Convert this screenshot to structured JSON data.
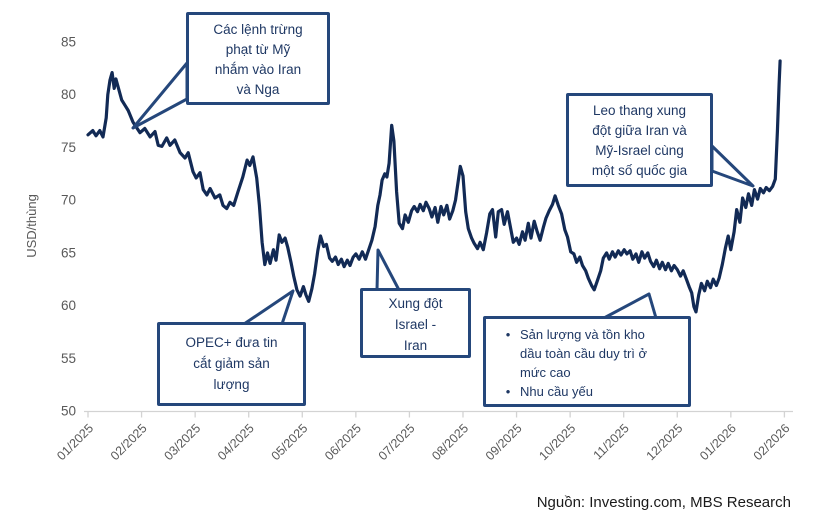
{
  "chart_data": {
    "type": "line",
    "title": "",
    "ylabel": "USD/thùng",
    "x_labels": [
      "01/2025",
      "02/2025",
      "03/2025",
      "04/2025",
      "05/2025",
      "06/2025",
      "07/2025",
      "08/2025",
      "09/2025",
      "10/2025",
      "11/2025",
      "12/2025",
      "01/2026",
      "02/2026"
    ],
    "y_ticks": [
      50,
      55,
      60,
      65,
      70,
      75,
      80,
      85
    ],
    "ylim": [
      50,
      85
    ],
    "grid": false,
    "legend": "none",
    "line_color": "#122A55",
    "axis_color": "#D3D3D3",
    "tick_label_color": "#595959",
    "series": [
      {
        "points": [
          [
            0,
            76.2
          ],
          [
            0.09,
            76.6
          ],
          [
            0.15,
            76.1
          ],
          [
            0.22,
            76.6
          ],
          [
            0.28,
            76
          ],
          [
            0.34,
            77.8
          ],
          [
            0.37,
            80
          ],
          [
            0.41,
            81.4
          ],
          [
            0.45,
            82.1
          ],
          [
            0.49,
            80.6
          ],
          [
            0.52,
            81.5
          ],
          [
            0.58,
            80.4
          ],
          [
            0.63,
            79.5
          ],
          [
            0.69,
            79
          ],
          [
            0.75,
            78.5
          ],
          [
            0.84,
            77.4
          ],
          [
            0.97,
            76.4
          ],
          [
            1.06,
            76.8
          ],
          [
            1.16,
            76
          ],
          [
            1.25,
            76.5
          ],
          [
            1.31,
            75.2
          ],
          [
            1.38,
            75.1
          ],
          [
            1.47,
            75.9
          ],
          [
            1.53,
            75.2
          ],
          [
            1.62,
            75.7
          ],
          [
            1.72,
            74.5
          ],
          [
            1.81,
            74
          ],
          [
            1.87,
            74.5
          ],
          [
            1.96,
            72.7
          ],
          [
            2.02,
            72.1
          ],
          [
            2.09,
            72.6
          ],
          [
            2.15,
            71
          ],
          [
            2.22,
            70.5
          ],
          [
            2.28,
            71.1
          ],
          [
            2.37,
            70.2
          ],
          [
            2.46,
            70.5
          ],
          [
            2.52,
            69.5
          ],
          [
            2.59,
            69.2
          ],
          [
            2.65,
            69.8
          ],
          [
            2.72,
            69.5
          ],
          [
            2.8,
            70.8
          ],
          [
            2.89,
            72.2
          ],
          [
            2.97,
            73.8
          ],
          [
            3.02,
            73.3
          ],
          [
            3.08,
            74.1
          ],
          [
            3.15,
            72.1
          ],
          [
            3.2,
            69.5
          ],
          [
            3.25,
            66
          ],
          [
            3.3,
            63.9
          ],
          [
            3.35,
            65
          ],
          [
            3.4,
            64
          ],
          [
            3.46,
            65.3
          ],
          [
            3.51,
            64.3
          ],
          [
            3.57,
            66.7
          ],
          [
            3.62,
            66
          ],
          [
            3.68,
            66.4
          ],
          [
            3.73,
            65.5
          ],
          [
            3.79,
            64.1
          ],
          [
            3.84,
            62.8
          ],
          [
            3.9,
            61.5
          ],
          [
            3.96,
            60.9
          ],
          [
            4.02,
            61.8
          ],
          [
            4.07,
            61
          ],
          [
            4.12,
            60.4
          ],
          [
            4.18,
            61.6
          ],
          [
            4.23,
            63
          ],
          [
            4.29,
            65.2
          ],
          [
            4.34,
            66.6
          ],
          [
            4.4,
            65.6
          ],
          [
            4.45,
            65.8
          ],
          [
            4.51,
            64.5
          ],
          [
            4.56,
            64.2
          ],
          [
            4.62,
            64.6
          ],
          [
            4.67,
            63.9
          ],
          [
            4.73,
            64.4
          ],
          [
            4.78,
            63.7
          ],
          [
            4.84,
            64.3
          ],
          [
            4.89,
            63.8
          ],
          [
            4.95,
            64.6
          ],
          [
            5,
            64.9
          ],
          [
            5.06,
            64.4
          ],
          [
            5.12,
            65.1
          ],
          [
            5.18,
            64.4
          ],
          [
            5.24,
            65.3
          ],
          [
            5.3,
            66.2
          ],
          [
            5.36,
            67.5
          ],
          [
            5.41,
            69.5
          ],
          [
            5.45,
            70.5
          ],
          [
            5.49,
            71.9
          ],
          [
            5.54,
            72.5
          ],
          [
            5.58,
            72.2
          ],
          [
            5.62,
            73.5
          ],
          [
            5.67,
            77.1
          ],
          [
            5.71,
            75.6
          ],
          [
            5.76,
            70.8
          ],
          [
            5.81,
            67.8
          ],
          [
            5.87,
            67.3
          ],
          [
            5.92,
            68.6
          ],
          [
            5.98,
            67.9
          ],
          [
            6.04,
            69
          ],
          [
            6.09,
            69.4
          ],
          [
            6.15,
            68.9
          ],
          [
            6.2,
            69.6
          ],
          [
            6.26,
            69
          ],
          [
            6.31,
            69.8
          ],
          [
            6.37,
            69.2
          ],
          [
            6.42,
            68.4
          ],
          [
            6.48,
            69.3
          ],
          [
            6.53,
            67.9
          ],
          [
            6.59,
            69.4
          ],
          [
            6.64,
            68.6
          ],
          [
            6.7,
            69.5
          ],
          [
            6.75,
            68.2
          ],
          [
            6.81,
            69
          ],
          [
            6.86,
            70
          ],
          [
            6.91,
            71.8
          ],
          [
            6.95,
            73.2
          ],
          [
            7,
            72.3
          ],
          [
            7.05,
            68.9
          ],
          [
            7.1,
            67.3
          ],
          [
            7.16,
            66.4
          ],
          [
            7.21,
            65.9
          ],
          [
            7.27,
            65.4
          ],
          [
            7.32,
            66
          ],
          [
            7.38,
            65.3
          ],
          [
            7.44,
            66.9
          ],
          [
            7.5,
            68.7
          ],
          [
            7.55,
            69.1
          ],
          [
            7.61,
            66.5
          ],
          [
            7.66,
            68.9
          ],
          [
            7.72,
            69.1
          ],
          [
            7.77,
            67.7
          ],
          [
            7.83,
            68.9
          ],
          [
            7.88,
            67.6
          ],
          [
            7.94,
            66
          ],
          [
            8,
            66.4
          ],
          [
            8.05,
            65.8
          ],
          [
            8.11,
            67
          ],
          [
            8.16,
            66.2
          ],
          [
            8.22,
            67.8
          ],
          [
            8.27,
            66.4
          ],
          [
            8.33,
            68
          ],
          [
            8.38,
            67.1
          ],
          [
            8.44,
            66.2
          ],
          [
            8.5,
            67.4
          ],
          [
            8.55,
            68.3
          ],
          [
            8.61,
            69
          ],
          [
            8.67,
            69.6
          ],
          [
            8.72,
            70.4
          ],
          [
            8.78,
            69.5
          ],
          [
            8.84,
            68.7
          ],
          [
            8.9,
            67.2
          ],
          [
            8.95,
            66.5
          ],
          [
            9.01,
            65.1
          ],
          [
            9.07,
            64.9
          ],
          [
            9.12,
            64.1
          ],
          [
            9.18,
            64.6
          ],
          [
            9.23,
            63.8
          ],
          [
            9.29,
            63.3
          ],
          [
            9.34,
            62.6
          ],
          [
            9.4,
            61.9
          ],
          [
            9.45,
            61.5
          ],
          [
            9.51,
            62.4
          ],
          [
            9.57,
            63.3
          ],
          [
            9.62,
            64.5
          ],
          [
            9.68,
            65
          ],
          [
            9.73,
            64.4
          ],
          [
            9.79,
            65.1
          ],
          [
            9.84,
            64.6
          ],
          [
            9.9,
            65.2
          ],
          [
            9.95,
            64.8
          ],
          [
            10.01,
            65.3
          ],
          [
            10.06,
            64.9
          ],
          [
            10.12,
            65.2
          ],
          [
            10.17,
            64.4
          ],
          [
            10.23,
            64.9
          ],
          [
            10.28,
            64.1
          ],
          [
            10.34,
            65.1
          ],
          [
            10.39,
            64.5
          ],
          [
            10.45,
            65
          ],
          [
            10.5,
            64.2
          ],
          [
            10.56,
            63.7
          ],
          [
            10.61,
            64.3
          ],
          [
            10.67,
            63.5
          ],
          [
            10.72,
            64.1
          ],
          [
            10.78,
            63.4
          ],
          [
            10.83,
            64
          ],
          [
            10.89,
            63.3
          ],
          [
            10.94,
            63.8
          ],
          [
            11,
            63.4
          ],
          [
            11.06,
            62.8
          ],
          [
            11.11,
            63.3
          ],
          [
            11.17,
            62.5
          ],
          [
            11.22,
            61.8
          ],
          [
            11.27,
            61.2
          ],
          [
            11.31,
            59.9
          ],
          [
            11.35,
            59.4
          ],
          [
            11.4,
            61
          ],
          [
            11.45,
            62.1
          ],
          [
            11.51,
            61.4
          ],
          [
            11.56,
            62.3
          ],
          [
            11.62,
            61.7
          ],
          [
            11.67,
            62.5
          ],
          [
            11.73,
            61.9
          ],
          [
            11.78,
            62.6
          ],
          [
            11.84,
            63.9
          ],
          [
            11.9,
            65.5
          ],
          [
            11.95,
            66.6
          ],
          [
            12,
            65.3
          ],
          [
            12.06,
            67
          ],
          [
            12.11,
            69.1
          ],
          [
            12.17,
            67.9
          ],
          [
            12.22,
            70.2
          ],
          [
            12.28,
            69.3
          ],
          [
            12.33,
            70.6
          ],
          [
            12.39,
            69.5
          ],
          [
            12.44,
            71
          ],
          [
            12.5,
            70.1
          ],
          [
            12.55,
            71.1
          ],
          [
            12.61,
            70.7
          ],
          [
            12.66,
            71.2
          ],
          [
            12.72,
            70.9
          ],
          [
            12.78,
            71.3
          ],
          [
            12.83,
            72
          ],
          [
            12.87,
            76.5
          ],
          [
            12.9,
            81
          ],
          [
            12.92,
            83.2
          ]
        ]
      }
    ]
  },
  "annotations": {
    "sanctions": {
      "lines": [
        "Các lệnh trừng",
        "phạt từ Mỹ",
        "nhắm vào Iran",
        "và Nga"
      ]
    },
    "escalation": {
      "lines": [
        "Leo thang xung",
        "đột giữa Iran và",
        "Mỹ-Israel cùng",
        "một số quốc gia"
      ]
    },
    "opec": {
      "lines": [
        "OPEC+ đưa tin",
        "cắt giảm sản",
        "lượng"
      ]
    },
    "israel_iran": {
      "lines": [
        "Xung đột",
        "Israel -",
        "Iran"
      ]
    },
    "supply_demand": {
      "items": [
        "Sản lượng và tồn kho dầu toàn cầu duy trì ở mức cao",
        "Nhu cầu yếu"
      ]
    }
  },
  "source": "Nguồn: Investing.com, MBS Research"
}
